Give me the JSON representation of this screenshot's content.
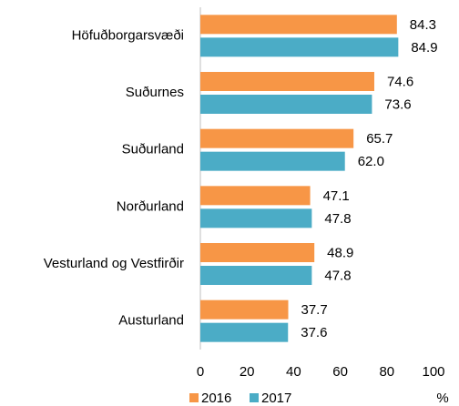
{
  "chart_data": {
    "type": "hbar",
    "categories": [
      "Höfuðborgarsvæði",
      "Suðurnes",
      "Suðurland",
      "Norðurland",
      "Vesturland og Vestfirðir",
      "Austurland"
    ],
    "series": [
      {
        "name": "2016",
        "color": "#f79646",
        "values": [
          84.3,
          74.6,
          65.7,
          47.1,
          48.9,
          37.7
        ],
        "value_labels": [
          "84.3",
          "74.6",
          "65.7",
          "47.1",
          "48.9",
          "37.7"
        ]
      },
      {
        "name": "2017",
        "color": "#4bacc6",
        "values": [
          84.9,
          73.6,
          62.0,
          47.8,
          47.8,
          37.6
        ],
        "value_labels": [
          "84.9",
          "73.6",
          "62.0",
          "47.8",
          "47.8",
          "37.6"
        ]
      }
    ],
    "xlabel": "%",
    "xlim": [
      0,
      100
    ],
    "xticks": [
      0,
      20,
      40,
      60,
      80,
      100
    ],
    "legend": "bottom"
  }
}
